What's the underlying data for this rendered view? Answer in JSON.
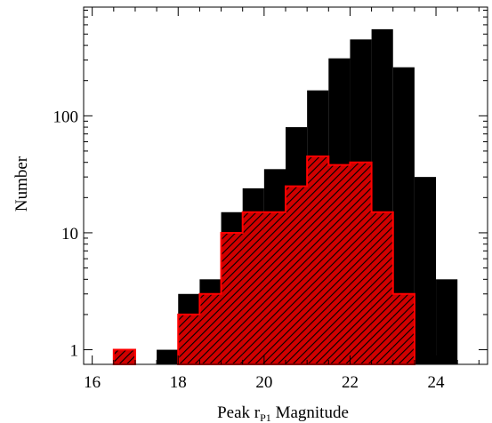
{
  "chart_data": {
    "type": "bar",
    "xlabel_main": "Peak r",
    "xlabel_sub": "P1",
    "xlabel_tail": " Magnitude",
    "ylabel": "Number",
    "xlim": [
      15.8,
      25.2
    ],
    "ylim": [
      0.75,
      850
    ],
    "yscale": "log",
    "xticks": [
      16,
      18,
      20,
      22,
      24
    ],
    "yticks": [
      1,
      10,
      100
    ],
    "xtick_labels": [
      "16",
      "18",
      "20",
      "22",
      "24"
    ],
    "ytick_labels": [
      "1",
      "10",
      "100"
    ],
    "bin_width": 0.5,
    "series": [
      {
        "style": "solid",
        "color": "#000000",
        "bins": [
          {
            "x": 16.5,
            "y": 1
          },
          {
            "x": 17.5,
            "y": 1
          },
          {
            "x": 18.0,
            "y": 3
          },
          {
            "x": 18.5,
            "y": 4
          },
          {
            "x": 19.0,
            "y": 15
          },
          {
            "x": 19.5,
            "y": 24
          },
          {
            "x": 20.0,
            "y": 35
          },
          {
            "x": 20.5,
            "y": 80
          },
          {
            "x": 21.0,
            "y": 165
          },
          {
            "x": 21.5,
            "y": 310
          },
          {
            "x": 22.0,
            "y": 450
          },
          {
            "x": 22.5,
            "y": 550
          },
          {
            "x": 23.0,
            "y": 260
          },
          {
            "x": 23.5,
            "y": 30
          },
          {
            "x": 24.0,
            "y": 4
          }
        ]
      },
      {
        "style": "hatched",
        "color": "#ff0000",
        "bins": [
          {
            "x": 16.5,
            "y": 1
          },
          {
            "x": 18.0,
            "y": 2
          },
          {
            "x": 18.5,
            "y": 3
          },
          {
            "x": 19.0,
            "y": 10
          },
          {
            "x": 19.5,
            "y": 15
          },
          {
            "x": 20.0,
            "y": 15
          },
          {
            "x": 20.5,
            "y": 25
          },
          {
            "x": 21.0,
            "y": 45
          },
          {
            "x": 21.5,
            "y": 38
          },
          {
            "x": 22.0,
            "y": 40
          },
          {
            "x": 22.5,
            "y": 15
          },
          {
            "x": 23.0,
            "y": 3
          }
        ]
      }
    ]
  }
}
